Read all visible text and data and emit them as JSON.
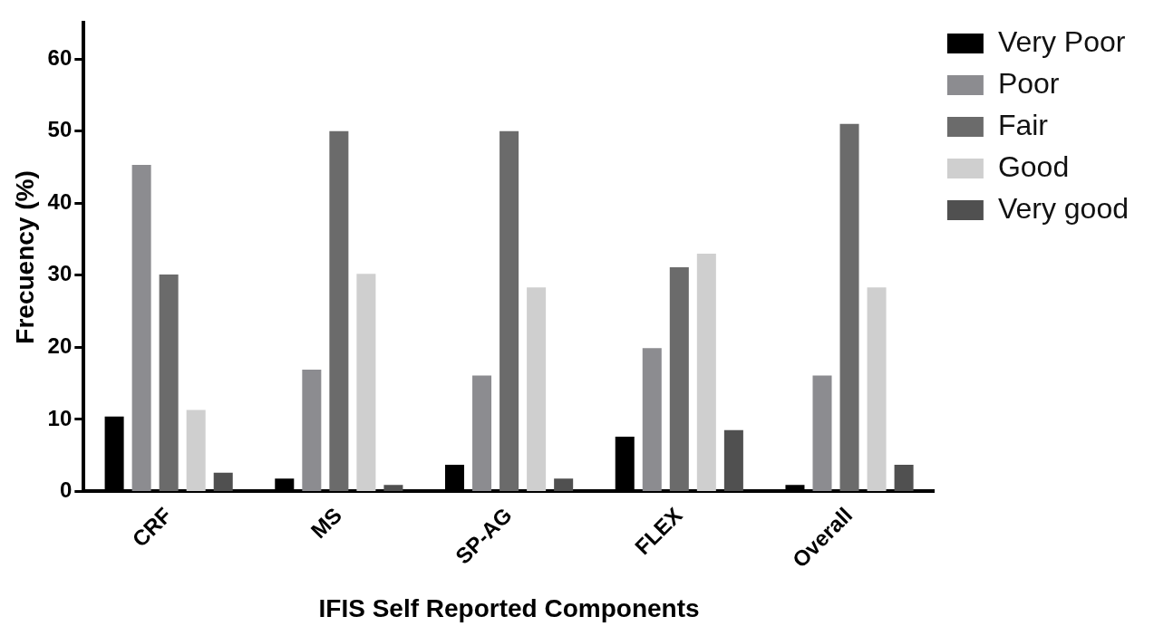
{
  "chart_data": {
    "type": "bar",
    "xlabel": "IFIS Self Reported Components",
    "ylabel": "Frecuency (%)",
    "categories": [
      "CRF",
      "MS",
      "SP-AG",
      "FLEX",
      "Overall"
    ],
    "series": [
      {
        "name": "Very Poor",
        "color": "#000000",
        "values": [
          10.4,
          1.8,
          3.7,
          7.6,
          0.9
        ]
      },
      {
        "name": "Poor",
        "color": "#8c8c90",
        "values": [
          45.3,
          16.9,
          16.1,
          19.9,
          16.1
        ]
      },
      {
        "name": "Fair",
        "color": "#6b6b6b",
        "values": [
          30.1,
          50,
          50,
          31.1,
          51
        ]
      },
      {
        "name": "Good",
        "color": "#cfcfcf",
        "values": [
          11.3,
          30.2,
          28.3,
          33,
          28.3
        ]
      },
      {
        "name": "Very good",
        "color": "#505050",
        "values": [
          2.6,
          0.9,
          1.8,
          8.5,
          3.7
        ]
      }
    ],
    "ylim": [
      0,
      65
    ],
    "yticks": [
      0,
      10,
      20,
      30,
      40,
      50,
      60
    ],
    "grid": false,
    "legend": "top right"
  }
}
